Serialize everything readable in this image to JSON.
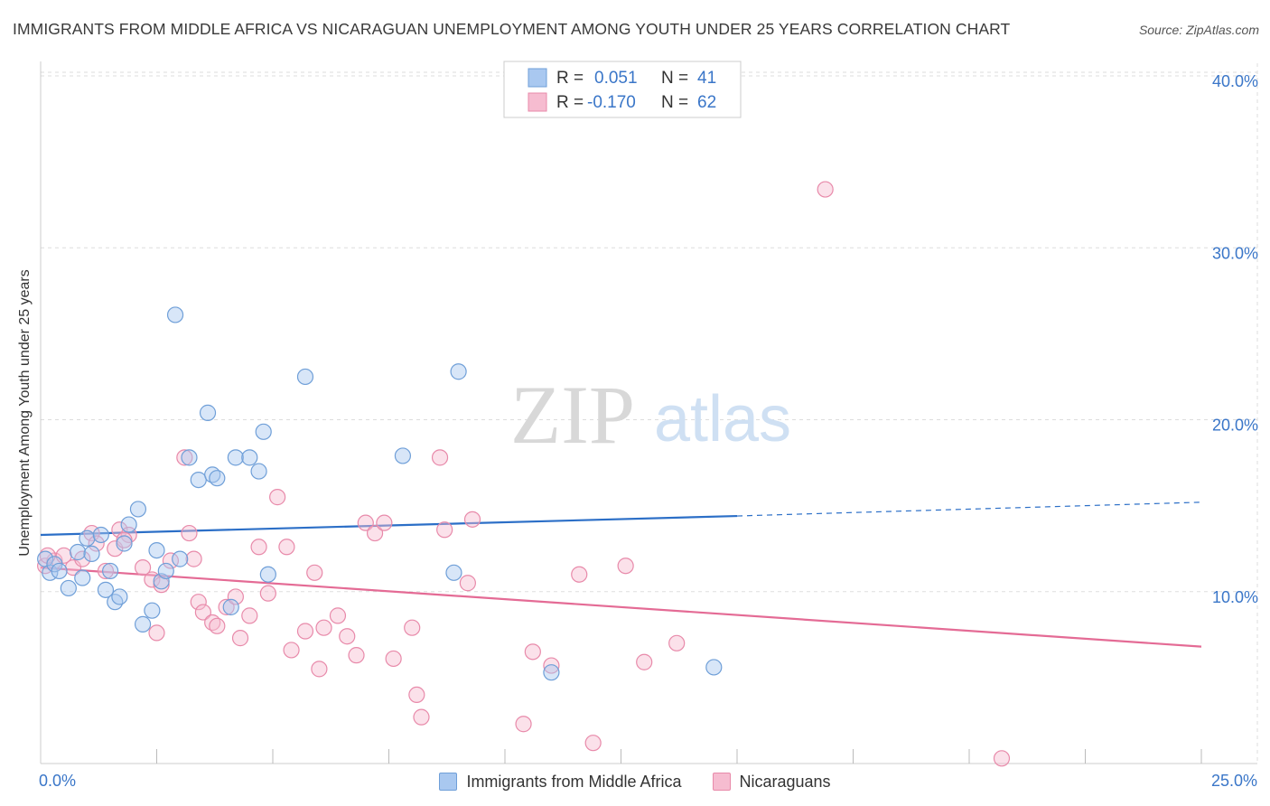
{
  "header": {
    "title": "IMMIGRANTS FROM MIDDLE AFRICA VS NICARAGUAN UNEMPLOYMENT AMONG YOUTH UNDER 25 YEARS CORRELATION CHART",
    "source": "Source: ZipAtlas.com"
  },
  "watermark": {
    "zip": "ZIP",
    "atlas": "atlas"
  },
  "legend": {
    "r_label": "R =",
    "n_label": "N =",
    "series1": {
      "r": "0.051",
      "n": "41"
    },
    "series2": {
      "r": "-0.170",
      "n": "62"
    }
  },
  "colors": {
    "blue_fill": "#a9c8f0",
    "blue_stroke": "#6f9fd8",
    "blue_line": "#2c6fc7",
    "pink_fill": "#f6bcd0",
    "pink_stroke": "#e88aaa",
    "pink_line": "#e46b95",
    "tick_text": "#3a76c8",
    "grid": "#dddddd"
  },
  "chart_data": {
    "type": "scatter",
    "title": "IMMIGRANTS FROM MIDDLE AFRICA VS NICARAGUAN UNEMPLOYMENT AMONG YOUTH UNDER 25 YEARS CORRELATION CHART",
    "xlabel": "",
    "ylabel": "Unemployment Among Youth under 25 years",
    "xlim": [
      0,
      25
    ],
    "ylim": [
      0,
      40
    ],
    "x_tick_labels": [
      "0.0%",
      "25.0%"
    ],
    "y_ticks": [
      10,
      20,
      30,
      40
    ],
    "y_tick_labels": [
      "10.0%",
      "20.0%",
      "30.0%",
      "40.0%"
    ],
    "grid": true,
    "legend_position": "top-center",
    "series": [
      {
        "name": "Immigrants from Middle Africa",
        "r": 0.051,
        "n": 41,
        "trend": {
          "x0": 0,
          "y0": 13.3,
          "x1": 15,
          "y1": 14.4,
          "dash_to_x": 25,
          "dash_to_y": 15.2
        },
        "points": [
          [
            0.1,
            11.9
          ],
          [
            0.2,
            11.1
          ],
          [
            0.3,
            11.6
          ],
          [
            0.4,
            11.2
          ],
          [
            0.6,
            10.2
          ],
          [
            0.8,
            12.3
          ],
          [
            0.9,
            10.8
          ],
          [
            1.0,
            13.1
          ],
          [
            1.1,
            12.2
          ],
          [
            1.3,
            13.3
          ],
          [
            1.4,
            10.1
          ],
          [
            1.5,
            11.2
          ],
          [
            1.6,
            9.4
          ],
          [
            1.7,
            9.7
          ],
          [
            1.8,
            12.8
          ],
          [
            1.9,
            13.9
          ],
          [
            2.1,
            14.8
          ],
          [
            2.2,
            8.1
          ],
          [
            2.4,
            8.9
          ],
          [
            2.5,
            12.4
          ],
          [
            2.6,
            10.6
          ],
          [
            2.7,
            11.2
          ],
          [
            2.9,
            26.1
          ],
          [
            3.0,
            11.9
          ],
          [
            3.2,
            17.8
          ],
          [
            3.4,
            16.5
          ],
          [
            3.6,
            20.4
          ],
          [
            3.7,
            16.8
          ],
          [
            3.8,
            16.6
          ],
          [
            4.1,
            9.1
          ],
          [
            4.2,
            17.8
          ],
          [
            4.5,
            17.8
          ],
          [
            4.7,
            17.0
          ],
          [
            4.8,
            19.3
          ],
          [
            4.9,
            11.0
          ],
          [
            5.7,
            22.5
          ],
          [
            7.8,
            17.9
          ],
          [
            8.9,
            11.1
          ],
          [
            9.0,
            22.8
          ],
          [
            11.0,
            5.3
          ],
          [
            14.5,
            5.6
          ]
        ]
      },
      {
        "name": "Nicaraguans",
        "r": -0.17,
        "n": 62,
        "trend": {
          "x0": 0,
          "y0": 11.4,
          "x1": 25,
          "y1": 6.8
        },
        "points": [
          [
            0.1,
            11.5
          ],
          [
            0.3,
            11.8
          ],
          [
            0.5,
            12.1
          ],
          [
            0.7,
            11.4
          ],
          [
            0.9,
            11.9
          ],
          [
            1.1,
            13.4
          ],
          [
            1.2,
            12.8
          ],
          [
            1.4,
            11.2
          ],
          [
            1.6,
            12.5
          ],
          [
            1.7,
            13.6
          ],
          [
            1.9,
            13.3
          ],
          [
            2.2,
            11.4
          ],
          [
            2.4,
            10.7
          ],
          [
            2.5,
            7.6
          ],
          [
            2.6,
            10.4
          ],
          [
            2.8,
            11.8
          ],
          [
            3.1,
            17.8
          ],
          [
            3.2,
            13.4
          ],
          [
            3.3,
            11.9
          ],
          [
            3.4,
            9.4
          ],
          [
            3.5,
            8.8
          ],
          [
            3.7,
            8.2
          ],
          [
            3.8,
            8.0
          ],
          [
            4.0,
            9.1
          ],
          [
            4.2,
            9.7
          ],
          [
            4.3,
            7.3
          ],
          [
            4.5,
            8.6
          ],
          [
            4.7,
            12.6
          ],
          [
            4.9,
            9.9
          ],
          [
            5.1,
            15.5
          ],
          [
            5.3,
            12.6
          ],
          [
            5.4,
            6.6
          ],
          [
            5.7,
            7.7
          ],
          [
            5.9,
            11.1
          ],
          [
            6.0,
            5.5
          ],
          [
            6.1,
            7.9
          ],
          [
            6.4,
            8.6
          ],
          [
            6.6,
            7.4
          ],
          [
            6.8,
            6.3
          ],
          [
            7.0,
            14.0
          ],
          [
            7.2,
            13.4
          ],
          [
            7.4,
            14.0
          ],
          [
            7.6,
            6.1
          ],
          [
            8.0,
            7.9
          ],
          [
            8.1,
            4.0
          ],
          [
            8.2,
            2.7
          ],
          [
            8.6,
            17.8
          ],
          [
            8.7,
            13.6
          ],
          [
            9.2,
            10.5
          ],
          [
            9.3,
            14.2
          ],
          [
            10.4,
            2.3
          ],
          [
            10.6,
            6.5
          ],
          [
            11.0,
            5.7
          ],
          [
            11.6,
            11.0
          ],
          [
            11.9,
            1.2
          ],
          [
            12.6,
            11.5
          ],
          [
            13.0,
            5.9
          ],
          [
            13.7,
            7.0
          ],
          [
            16.9,
            33.4
          ],
          [
            20.7,
            0.3
          ],
          [
            0.15,
            12.1
          ],
          [
            1.8,
            13.0
          ]
        ]
      }
    ]
  }
}
